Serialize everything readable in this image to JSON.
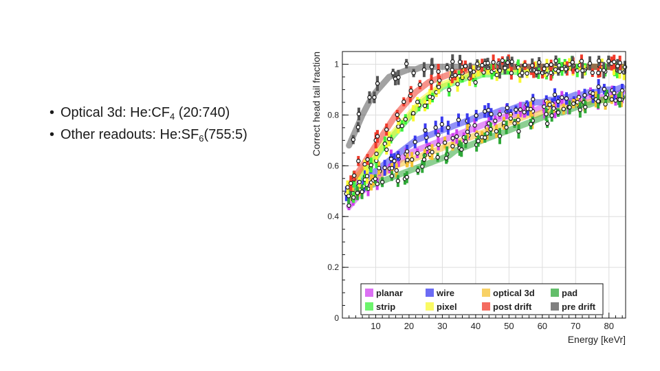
{
  "slide": {
    "bullets": [
      {
        "prefix": "Optical 3d: He:CF",
        "sub": "4",
        "suffix": " (20:740)"
      },
      {
        "prefix": "Other readouts: He:SF",
        "sub": "6",
        "suffix": "(755:5)"
      }
    ],
    "bullet_marker": "•"
  },
  "chart_data": {
    "type": "scatter",
    "xlabel": "Energy [keVr]",
    "ylabel": "Correct head tail fraction",
    "xlim": [
      0,
      85
    ],
    "ylim": [
      0,
      1.05
    ],
    "xticks": [
      10,
      20,
      30,
      40,
      50,
      60,
      70,
      80
    ],
    "yticks": [
      0,
      0.2,
      0.4,
      0.6,
      0.8,
      1
    ],
    "grid": true,
    "legend_position": "bottom",
    "series": [
      {
        "name": "planar",
        "color": "#d040f0",
        "x": [
          2,
          4,
          6,
          8,
          10,
          12,
          14,
          16,
          18,
          20,
          22,
          24,
          26,
          28,
          30,
          32,
          34,
          36,
          38,
          40,
          42,
          44,
          46,
          48,
          50,
          52,
          54,
          56,
          58,
          60,
          62,
          64,
          66,
          68,
          70,
          72,
          74,
          76,
          78,
          80,
          82,
          84
        ],
        "y": [
          0.44,
          0.47,
          0.5,
          0.52,
          0.55,
          0.57,
          0.59,
          0.61,
          0.63,
          0.65,
          0.66,
          0.67,
          0.68,
          0.69,
          0.7,
          0.71,
          0.72,
          0.73,
          0.74,
          0.75,
          0.76,
          0.77,
          0.78,
          0.79,
          0.8,
          0.8,
          0.81,
          0.82,
          0.82,
          0.83,
          0.84,
          0.84,
          0.85,
          0.85,
          0.86,
          0.86,
          0.87,
          0.87,
          0.87,
          0.88,
          0.88,
          0.89
        ]
      },
      {
        "name": "wire",
        "color": "#3a3af0",
        "x": [
          2,
          4,
          6,
          8,
          10,
          12,
          14,
          16,
          18,
          20,
          22,
          24,
          26,
          28,
          30,
          32,
          34,
          36,
          38,
          40,
          42,
          44,
          46,
          48,
          50,
          52,
          54,
          56,
          58,
          60,
          62,
          64,
          66,
          68,
          70,
          72,
          74,
          76,
          78,
          80,
          82,
          84
        ],
        "y": [
          0.5,
          0.52,
          0.54,
          0.56,
          0.58,
          0.6,
          0.62,
          0.64,
          0.66,
          0.68,
          0.7,
          0.71,
          0.72,
          0.73,
          0.74,
          0.75,
          0.76,
          0.77,
          0.78,
          0.79,
          0.8,
          0.8,
          0.81,
          0.82,
          0.82,
          0.83,
          0.84,
          0.84,
          0.85,
          0.85,
          0.86,
          0.86,
          0.87,
          0.87,
          0.88,
          0.88,
          0.89,
          0.89,
          0.9,
          0.9,
          0.9,
          0.91
        ]
      },
      {
        "name": "optical 3d",
        "color": "#f5c232",
        "x": [
          2,
          4,
          6,
          8,
          10,
          12,
          14,
          16,
          18,
          20,
          22,
          24,
          26,
          28,
          30,
          32,
          34,
          36,
          38,
          40,
          42,
          44,
          46,
          48,
          50,
          52,
          54,
          56,
          58,
          60,
          62,
          64,
          66,
          68,
          70,
          72,
          74,
          76,
          78,
          80,
          82,
          84
        ],
        "y": [
          0.47,
          0.49,
          0.51,
          0.53,
          0.55,
          0.57,
          0.58,
          0.6,
          0.61,
          0.62,
          0.63,
          0.64,
          0.65,
          0.66,
          0.67,
          0.68,
          0.69,
          0.7,
          0.71,
          0.72,
          0.73,
          0.74,
          0.75,
          0.76,
          0.77,
          0.78,
          0.79,
          0.8,
          0.8,
          0.81,
          0.82,
          0.82,
          0.83,
          0.84,
          0.84,
          0.85,
          0.85,
          0.86,
          0.86,
          0.86,
          0.87,
          0.87
        ]
      },
      {
        "name": "pad",
        "color": "#2fa838",
        "x": [
          2,
          4,
          6,
          8,
          10,
          12,
          14,
          16,
          18,
          20,
          22,
          24,
          26,
          28,
          30,
          32,
          34,
          36,
          38,
          40,
          42,
          44,
          46,
          48,
          50,
          52,
          54,
          56,
          58,
          60,
          62,
          64,
          66,
          68,
          70,
          72,
          74,
          76,
          78,
          80,
          82,
          84
        ],
        "y": [
          0.48,
          0.5,
          0.51,
          0.52,
          0.53,
          0.54,
          0.55,
          0.56,
          0.57,
          0.58,
          0.59,
          0.6,
          0.61,
          0.62,
          0.63,
          0.64,
          0.66,
          0.67,
          0.68,
          0.69,
          0.7,
          0.71,
          0.72,
          0.73,
          0.74,
          0.75,
          0.76,
          0.77,
          0.78,
          0.79,
          0.8,
          0.81,
          0.81,
          0.82,
          0.83,
          0.84,
          0.84,
          0.85,
          0.86,
          0.86,
          0.87,
          0.87
        ]
      },
      {
        "name": "strip",
        "color": "#3cf03c",
        "x": [
          2,
          4,
          6,
          8,
          10,
          12,
          14,
          16,
          18,
          20,
          22,
          24,
          26,
          28,
          30,
          32,
          34,
          36,
          38,
          40,
          42,
          44,
          46,
          48,
          50,
          52,
          54,
          56,
          58,
          60,
          62,
          64,
          66,
          68,
          70,
          72,
          74,
          76,
          78,
          80,
          82,
          84
        ],
        "y": [
          0.5,
          0.53,
          0.56,
          0.6,
          0.63,
          0.67,
          0.7,
          0.73,
          0.76,
          0.79,
          0.82,
          0.85,
          0.87,
          0.89,
          0.91,
          0.92,
          0.93,
          0.94,
          0.95,
          0.95,
          0.96,
          0.96,
          0.97,
          0.97,
          0.97,
          0.97,
          0.98,
          0.98,
          0.98,
          0.98,
          0.98,
          0.98,
          0.98,
          0.99,
          0.99,
          0.99,
          0.99,
          0.99,
          0.99,
          0.99,
          0.99,
          0.99
        ]
      },
      {
        "name": "pixel",
        "color": "#f8f830",
        "x": [
          2,
          4,
          6,
          8,
          10,
          12,
          14,
          16,
          18,
          20,
          22,
          24,
          26,
          28,
          30,
          32,
          34,
          36,
          38,
          40,
          42,
          44,
          46,
          48,
          50,
          52,
          54,
          56,
          58,
          60,
          62,
          64,
          66,
          68,
          70,
          72,
          74,
          76,
          78,
          80,
          82,
          84
        ],
        "y": [
          0.52,
          0.55,
          0.58,
          0.61,
          0.64,
          0.68,
          0.71,
          0.74,
          0.77,
          0.8,
          0.83,
          0.86,
          0.88,
          0.9,
          0.92,
          0.93,
          0.94,
          0.95,
          0.96,
          0.96,
          0.97,
          0.97,
          0.97,
          0.98,
          0.98,
          0.98,
          0.98,
          0.98,
          0.99,
          0.99,
          0.99,
          0.99,
          0.99,
          0.99,
          0.99,
          0.99,
          0.99,
          0.99,
          0.99,
          0.99,
          0.99,
          0.99
        ]
      },
      {
        "name": "post drift",
        "color": "#f03a2a",
        "x": [
          2,
          4,
          6,
          8,
          10,
          12,
          14,
          16,
          18,
          20,
          22,
          24,
          26,
          28,
          30,
          32,
          34,
          36,
          38,
          40,
          42,
          44,
          46,
          48,
          50,
          52,
          54,
          56,
          58,
          60,
          62,
          64,
          66,
          68,
          70,
          72,
          74,
          76,
          78,
          80,
          82,
          84
        ],
        "y": [
          0.52,
          0.56,
          0.6,
          0.64,
          0.68,
          0.72,
          0.76,
          0.8,
          0.83,
          0.86,
          0.89,
          0.91,
          0.93,
          0.94,
          0.95,
          0.96,
          0.97,
          0.97,
          0.98,
          0.98,
          0.98,
          0.99,
          0.99,
          0.99,
          0.99,
          0.99,
          0.99,
          0.99,
          0.99,
          0.99,
          0.99,
          0.99,
          0.99,
          0.99,
          0.99,
          0.99,
          0.99,
          0.99,
          0.99,
          0.99,
          0.99,
          0.99
        ]
      },
      {
        "name": "pre drift",
        "color": "#555555",
        "x": [
          2,
          4,
          6,
          8,
          10,
          12,
          14,
          16,
          18,
          20,
          22,
          24,
          26,
          28,
          30,
          32,
          34,
          36,
          38,
          40,
          42,
          44,
          46,
          48,
          50,
          52,
          54,
          56,
          58,
          60,
          62,
          64,
          66,
          68,
          70,
          72,
          74,
          76,
          78,
          80,
          82,
          84
        ],
        "y": [
          0.68,
          0.74,
          0.8,
          0.85,
          0.89,
          0.92,
          0.95,
          0.96,
          0.97,
          0.98,
          0.98,
          0.99,
          0.99,
          0.99,
          0.99,
          0.99,
          0.99,
          0.99,
          0.99,
          0.99,
          0.99,
          0.99,
          0.99,
          0.99,
          0.99,
          0.99,
          0.99,
          0.99,
          0.99,
          0.99,
          0.99,
          0.99,
          0.99,
          0.99,
          0.99,
          0.99,
          0.99,
          0.99,
          0.99,
          0.99,
          0.99,
          0.99
        ]
      }
    ],
    "legend": [
      "planar",
      "wire",
      "optical 3d",
      "pad",
      "strip",
      "pixel",
      "post drift",
      "pre drift"
    ]
  }
}
